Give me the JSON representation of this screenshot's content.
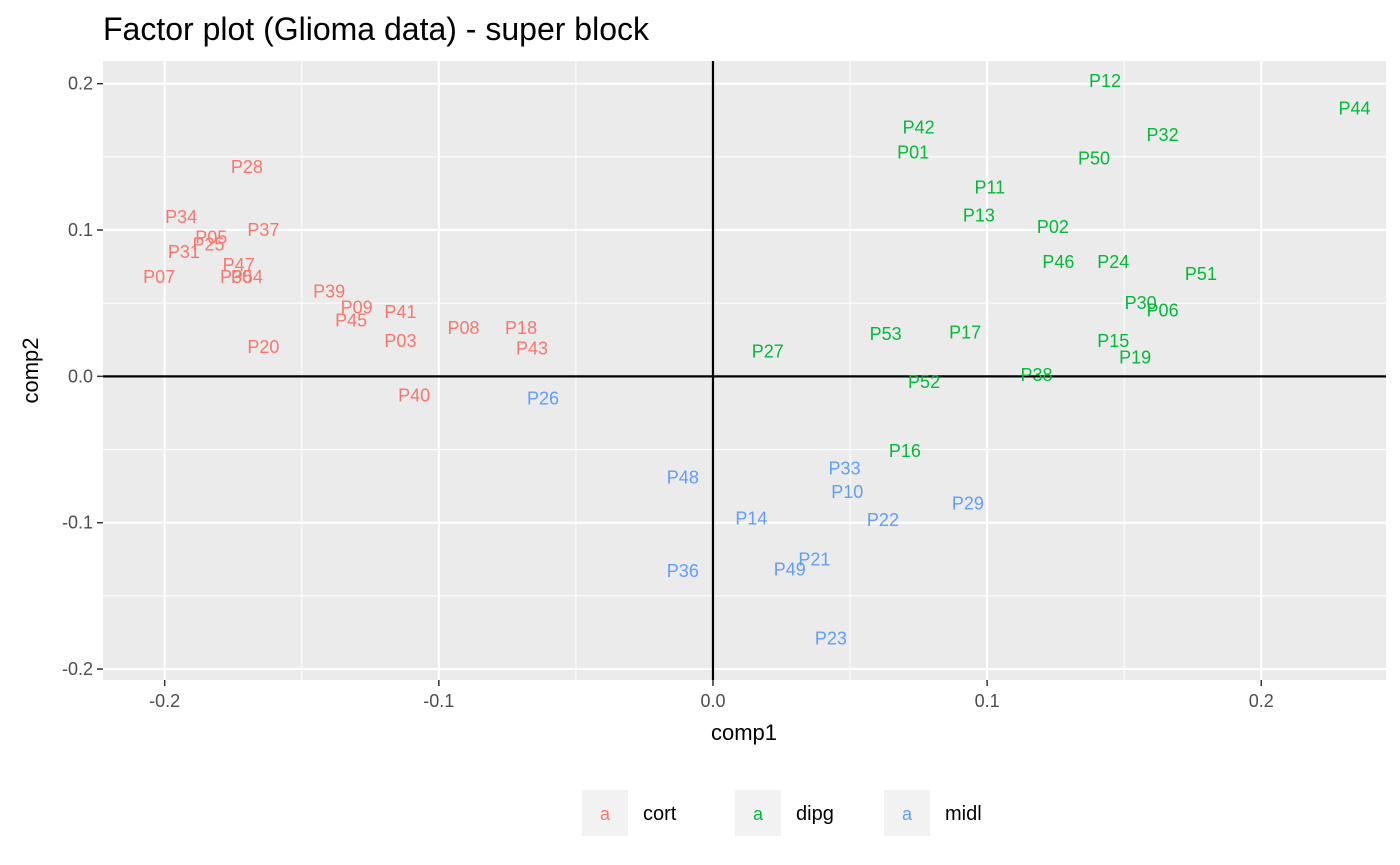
{
  "chart_data": {
    "type": "scatter",
    "title": "Factor plot (Glioma data) - super block",
    "xlabel": "comp1",
    "ylabel": "comp2",
    "xlim": [
      -0.2225,
      0.2455
    ],
    "ylim": [
      -0.2075,
      0.2155
    ],
    "x_ticks": [
      -0.2,
      -0.1,
      0.0,
      0.1,
      0.2
    ],
    "x_tick_labels": [
      "-0.2",
      "-0.1",
      "0.0",
      "0.1",
      "0.2"
    ],
    "y_ticks": [
      -0.2,
      -0.1,
      0.0,
      0.1,
      0.2
    ],
    "y_tick_labels": [
      "-0.2",
      "-0.1",
      "0.0",
      "0.1",
      "0.2"
    ],
    "grid": true,
    "reference_lines": {
      "x": 0,
      "y": 0
    },
    "legend_position": "bottom",
    "legend_key_glyph": "a",
    "series": [
      {
        "name": "cort",
        "color": "#F8766D",
        "points": [
          {
            "label": "P28",
            "x": -0.17,
            "y": 0.143
          },
          {
            "label": "P34",
            "x": -0.194,
            "y": 0.109
          },
          {
            "label": "P37",
            "x": -0.164,
            "y": 0.1
          },
          {
            "label": "P05",
            "x": -0.183,
            "y": 0.095
          },
          {
            "label": "P25",
            "x": -0.184,
            "y": 0.09
          },
          {
            "label": "P31",
            "x": -0.193,
            "y": 0.085
          },
          {
            "label": "P47",
            "x": -0.173,
            "y": 0.076
          },
          {
            "label": "P07",
            "x": -0.202,
            "y": 0.068
          },
          {
            "label": "P30",
            "x": -0.174,
            "y": 0.068
          },
          {
            "label": "P54",
            "x": -0.17,
            "y": 0.068
          },
          {
            "label": "P39",
            "x": -0.14,
            "y": 0.058
          },
          {
            "label": "P09",
            "x": -0.13,
            "y": 0.047
          },
          {
            "label": "P41",
            "x": -0.114,
            "y": 0.044
          },
          {
            "label": "P45",
            "x": -0.132,
            "y": 0.038
          },
          {
            "label": "P08",
            "x": -0.091,
            "y": 0.033
          },
          {
            "label": "P18",
            "x": -0.07,
            "y": 0.033
          },
          {
            "label": "P03",
            "x": -0.114,
            "y": 0.024
          },
          {
            "label": "P43",
            "x": -0.066,
            "y": 0.019
          },
          {
            "label": "P20",
            "x": -0.164,
            "y": 0.02
          },
          {
            "label": "P40",
            "x": -0.109,
            "y": -0.013
          }
        ]
      },
      {
        "name": "dipg",
        "color": "#00BA38",
        "points": [
          {
            "label": "P12",
            "x": 0.143,
            "y": 0.202
          },
          {
            "label": "P44",
            "x": 0.234,
            "y": 0.183
          },
          {
            "label": "P42",
            "x": 0.075,
            "y": 0.17
          },
          {
            "label": "P32",
            "x": 0.164,
            "y": 0.165
          },
          {
            "label": "P01",
            "x": 0.073,
            "y": 0.153
          },
          {
            "label": "P50",
            "x": 0.139,
            "y": 0.149
          },
          {
            "label": "P11",
            "x": 0.101,
            "y": 0.129
          },
          {
            "label": "P13",
            "x": 0.097,
            "y": 0.11
          },
          {
            "label": "P02",
            "x": 0.124,
            "y": 0.102
          },
          {
            "label": "P46",
            "x": 0.126,
            "y": 0.078
          },
          {
            "label": "P24",
            "x": 0.146,
            "y": 0.078
          },
          {
            "label": "P51",
            "x": 0.178,
            "y": 0.07
          },
          {
            "label": "P30",
            "x": 0.156,
            "y": 0.05
          },
          {
            "label": "P06",
            "x": 0.164,
            "y": 0.045
          },
          {
            "label": "P27",
            "x": 0.02,
            "y": 0.017
          },
          {
            "label": "P53",
            "x": 0.063,
            "y": 0.029
          },
          {
            "label": "P17",
            "x": 0.092,
            "y": 0.03
          },
          {
            "label": "P15",
            "x": 0.146,
            "y": 0.024
          },
          {
            "label": "P19",
            "x": 0.154,
            "y": 0.013
          },
          {
            "label": "P38",
            "x": 0.118,
            "y": 0.001
          },
          {
            "label": "P52",
            "x": 0.077,
            "y": -0.004
          },
          {
            "label": "P16",
            "x": 0.07,
            "y": -0.051
          }
        ]
      },
      {
        "name": "midl",
        "color": "#619CFF",
        "points": [
          {
            "label": "P26",
            "x": -0.062,
            "y": -0.015
          },
          {
            "label": "P48",
            "x": -0.011,
            "y": -0.069
          },
          {
            "label": "P33",
            "x": 0.048,
            "y": -0.063
          },
          {
            "label": "P10",
            "x": 0.049,
            "y": -0.079
          },
          {
            "label": "P29",
            "x": 0.093,
            "y": -0.087
          },
          {
            "label": "P14",
            "x": 0.014,
            "y": -0.097
          },
          {
            "label": "P22",
            "x": 0.062,
            "y": -0.098
          },
          {
            "label": "P21",
            "x": 0.037,
            "y": -0.125
          },
          {
            "label": "P49",
            "x": 0.028,
            "y": -0.132
          },
          {
            "label": "P36",
            "x": -0.011,
            "y": -0.133
          },
          {
            "label": "P23",
            "x": 0.043,
            "y": -0.179
          }
        ]
      }
    ]
  }
}
